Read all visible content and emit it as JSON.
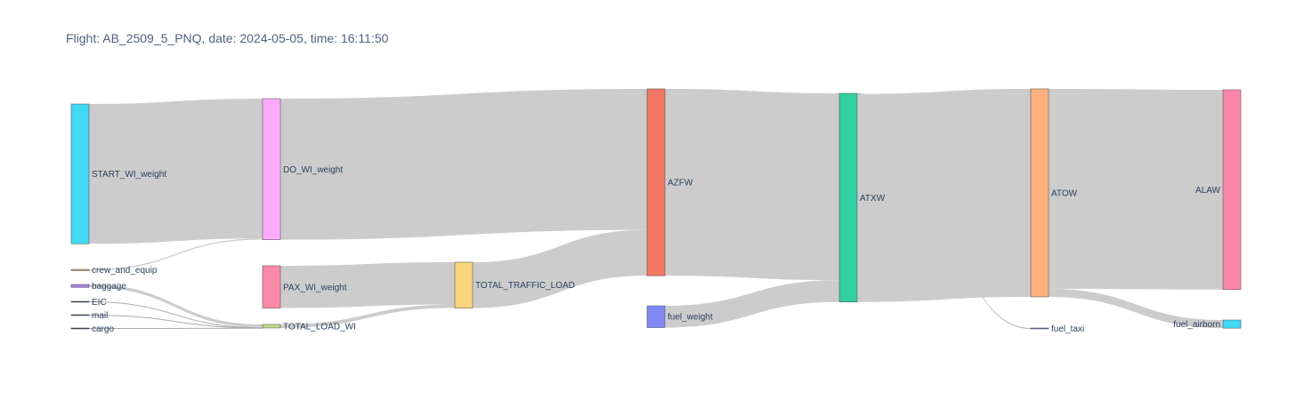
{
  "chart_data": {
    "type": "sankey",
    "title": "Flight: AB_2509_5_PNQ, date: 2024-05-05, time: 16:11:50",
    "nodes": [
      {
        "id": "START_WI_weight",
        "label": "START_WI_weight",
        "color": "#41d9f5"
      },
      {
        "id": "crew_and_equip",
        "label": "crew_and_equip",
        "color": "#f5a46b"
      },
      {
        "id": "baggage",
        "label": "baggage",
        "color": "#b07fe8"
      },
      {
        "id": "EIC",
        "label": "EIC",
        "color": "#2a3f5f"
      },
      {
        "id": "mail",
        "label": "mail",
        "color": "#2a3f5f"
      },
      {
        "id": "cargo",
        "label": "cargo",
        "color": "#2a3f5f"
      },
      {
        "id": "DO_WI_weight",
        "label": "DO_WI_weight",
        "color": "#fcabfc"
      },
      {
        "id": "PAX_WI_weight",
        "label": "PAX_WI_weight",
        "color": "#fb8aa6"
      },
      {
        "id": "TOTAL_LOAD_WI",
        "label": "TOTAL_LOAD_WI",
        "color": "#bde08a"
      },
      {
        "id": "TOTAL_TRAFFIC_LOAD",
        "label": "TOTAL_TRAFFIC_LOAD",
        "color": "#fdd47e"
      },
      {
        "id": "AZFW",
        "label": "AZFW",
        "color": "#f07763"
      },
      {
        "id": "fuel_weight",
        "label": "fuel_weight",
        "color": "#8088f5"
      },
      {
        "id": "ATXW",
        "label": "ATXW",
        "color": "#31d0a4"
      },
      {
        "id": "ATOW",
        "label": "ATOW",
        "color": "#fdb27d"
      },
      {
        "id": "fuel_taxi",
        "label": "fuel_taxi",
        "color": "#6a6af0"
      },
      {
        "id": "ALAW",
        "label": "ALAW",
        "color": "#fb88aa"
      },
      {
        "id": "fuel_airborn",
        "label": "fuel_airborn",
        "color": "#41d9f5"
      }
    ],
    "links": [
      {
        "source": "START_WI_weight",
        "target": "DO_WI_weight",
        "value": 43000
      },
      {
        "source": "crew_and_equip",
        "target": "DO_WI_weight",
        "value": 400
      },
      {
        "source": "baggage",
        "target": "TOTAL_LOAD_WI",
        "value": 900
      },
      {
        "source": "EIC",
        "target": "TOTAL_LOAD_WI",
        "value": 80
      },
      {
        "source": "mail",
        "target": "TOTAL_LOAD_WI",
        "value": 60
      },
      {
        "source": "cargo",
        "target": "TOTAL_LOAD_WI",
        "value": 40
      },
      {
        "source": "PAX_WI_weight",
        "target": "TOTAL_TRAFFIC_LOAD",
        "value": 13000
      },
      {
        "source": "TOTAL_LOAD_WI",
        "target": "TOTAL_TRAFFIC_LOAD",
        "value": 1080
      },
      {
        "source": "DO_WI_weight",
        "target": "AZFW",
        "value": 43400
      },
      {
        "source": "TOTAL_TRAFFIC_LOAD",
        "target": "AZFW",
        "value": 14080
      },
      {
        "source": "AZFW",
        "target": "ATXW",
        "value": 57480
      },
      {
        "source": "fuel_weight",
        "target": "ATXW",
        "value": 6700
      },
      {
        "source": "ATXW",
        "target": "fuel_taxi",
        "value": 200
      },
      {
        "source": "ATXW",
        "target": "ATOW",
        "value": 64000
      },
      {
        "source": "ATOW",
        "target": "ALAW",
        "value": 61500
      },
      {
        "source": "ATOW",
        "target": "fuel_airborn",
        "value": 2500
      }
    ]
  }
}
